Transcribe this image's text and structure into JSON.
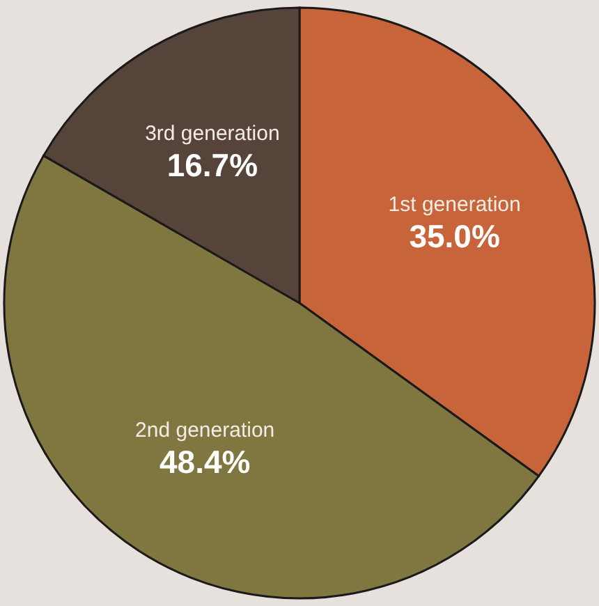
{
  "chart_data": {
    "type": "pie",
    "categories": [
      "1st generation",
      "2nd generation",
      "3rd generation"
    ],
    "values": [
      35.0,
      48.4,
      16.7
    ],
    "colors": [
      "#c8643a",
      "#80763f",
      "#56443a"
    ],
    "value_labels": [
      "35.0%",
      "48.4%",
      "16.7%"
    ]
  }
}
